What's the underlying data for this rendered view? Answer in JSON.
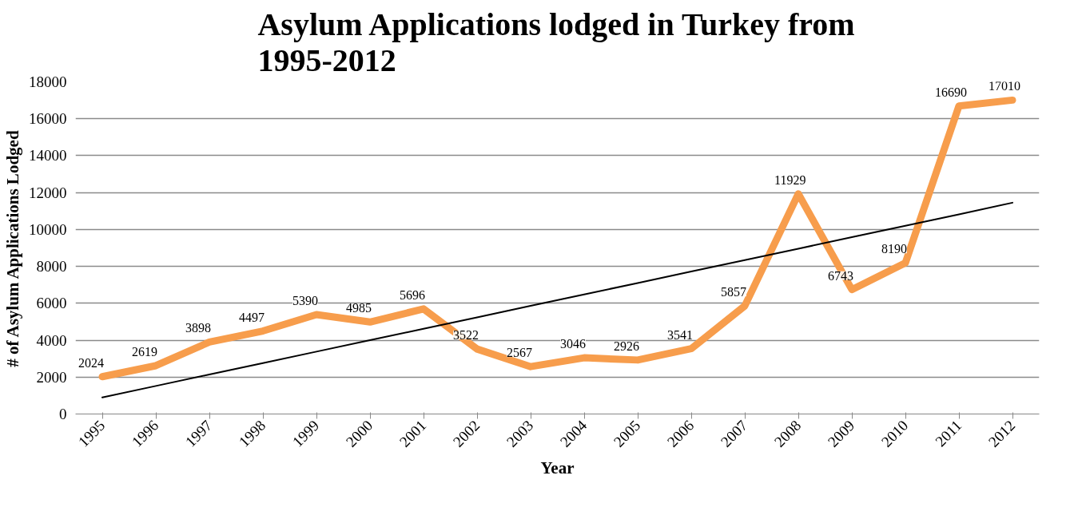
{
  "chart_data": {
    "type": "line",
    "title": "Asylum Applications lodged in Turkey from 1995-2012",
    "xlabel": "Year",
    "ylabel": "# of Asylum Applications Lodged",
    "categories": [
      "1995",
      "1996",
      "1997",
      "1998",
      "1999",
      "2000",
      "2001",
      "2002",
      "2003",
      "2004",
      "2005",
      "2006",
      "2007",
      "2008",
      "2009",
      "2010",
      "2011",
      "2012"
    ],
    "series": [
      {
        "color": "#f79d4c",
        "values": [
          2024,
          2619,
          3898,
          4497,
          5390,
          4985,
          5696,
          3522,
          2567,
          3046,
          2926,
          3541,
          5857,
          11929,
          6743,
          8190,
          16690,
          17010
        ],
        "value_labels": [
          "2024",
          "2619",
          "3898",
          "4497",
          "5390",
          "4985",
          "5696",
          "3522",
          "2567",
          "3046",
          "2926",
          "3541",
          "5857",
          "11929",
          "6743",
          "8190",
          "16690",
          "17010"
        ]
      },
      {
        "color": "#000000",
        "values": [
          900,
          1520,
          2140,
          2760,
          3380,
          4000,
          4620,
          5240,
          5860,
          6480,
          7100,
          7720,
          8340,
          8960,
          9580,
          10200,
          10820,
          11450
        ]
      }
    ],
    "ylim": [
      0,
      18000
    ],
    "yticks": [
      0,
      2000,
      4000,
      6000,
      8000,
      10000,
      12000,
      14000,
      16000,
      18000
    ],
    "grid": "y",
    "line_style": "solid",
    "marker": "none"
  }
}
